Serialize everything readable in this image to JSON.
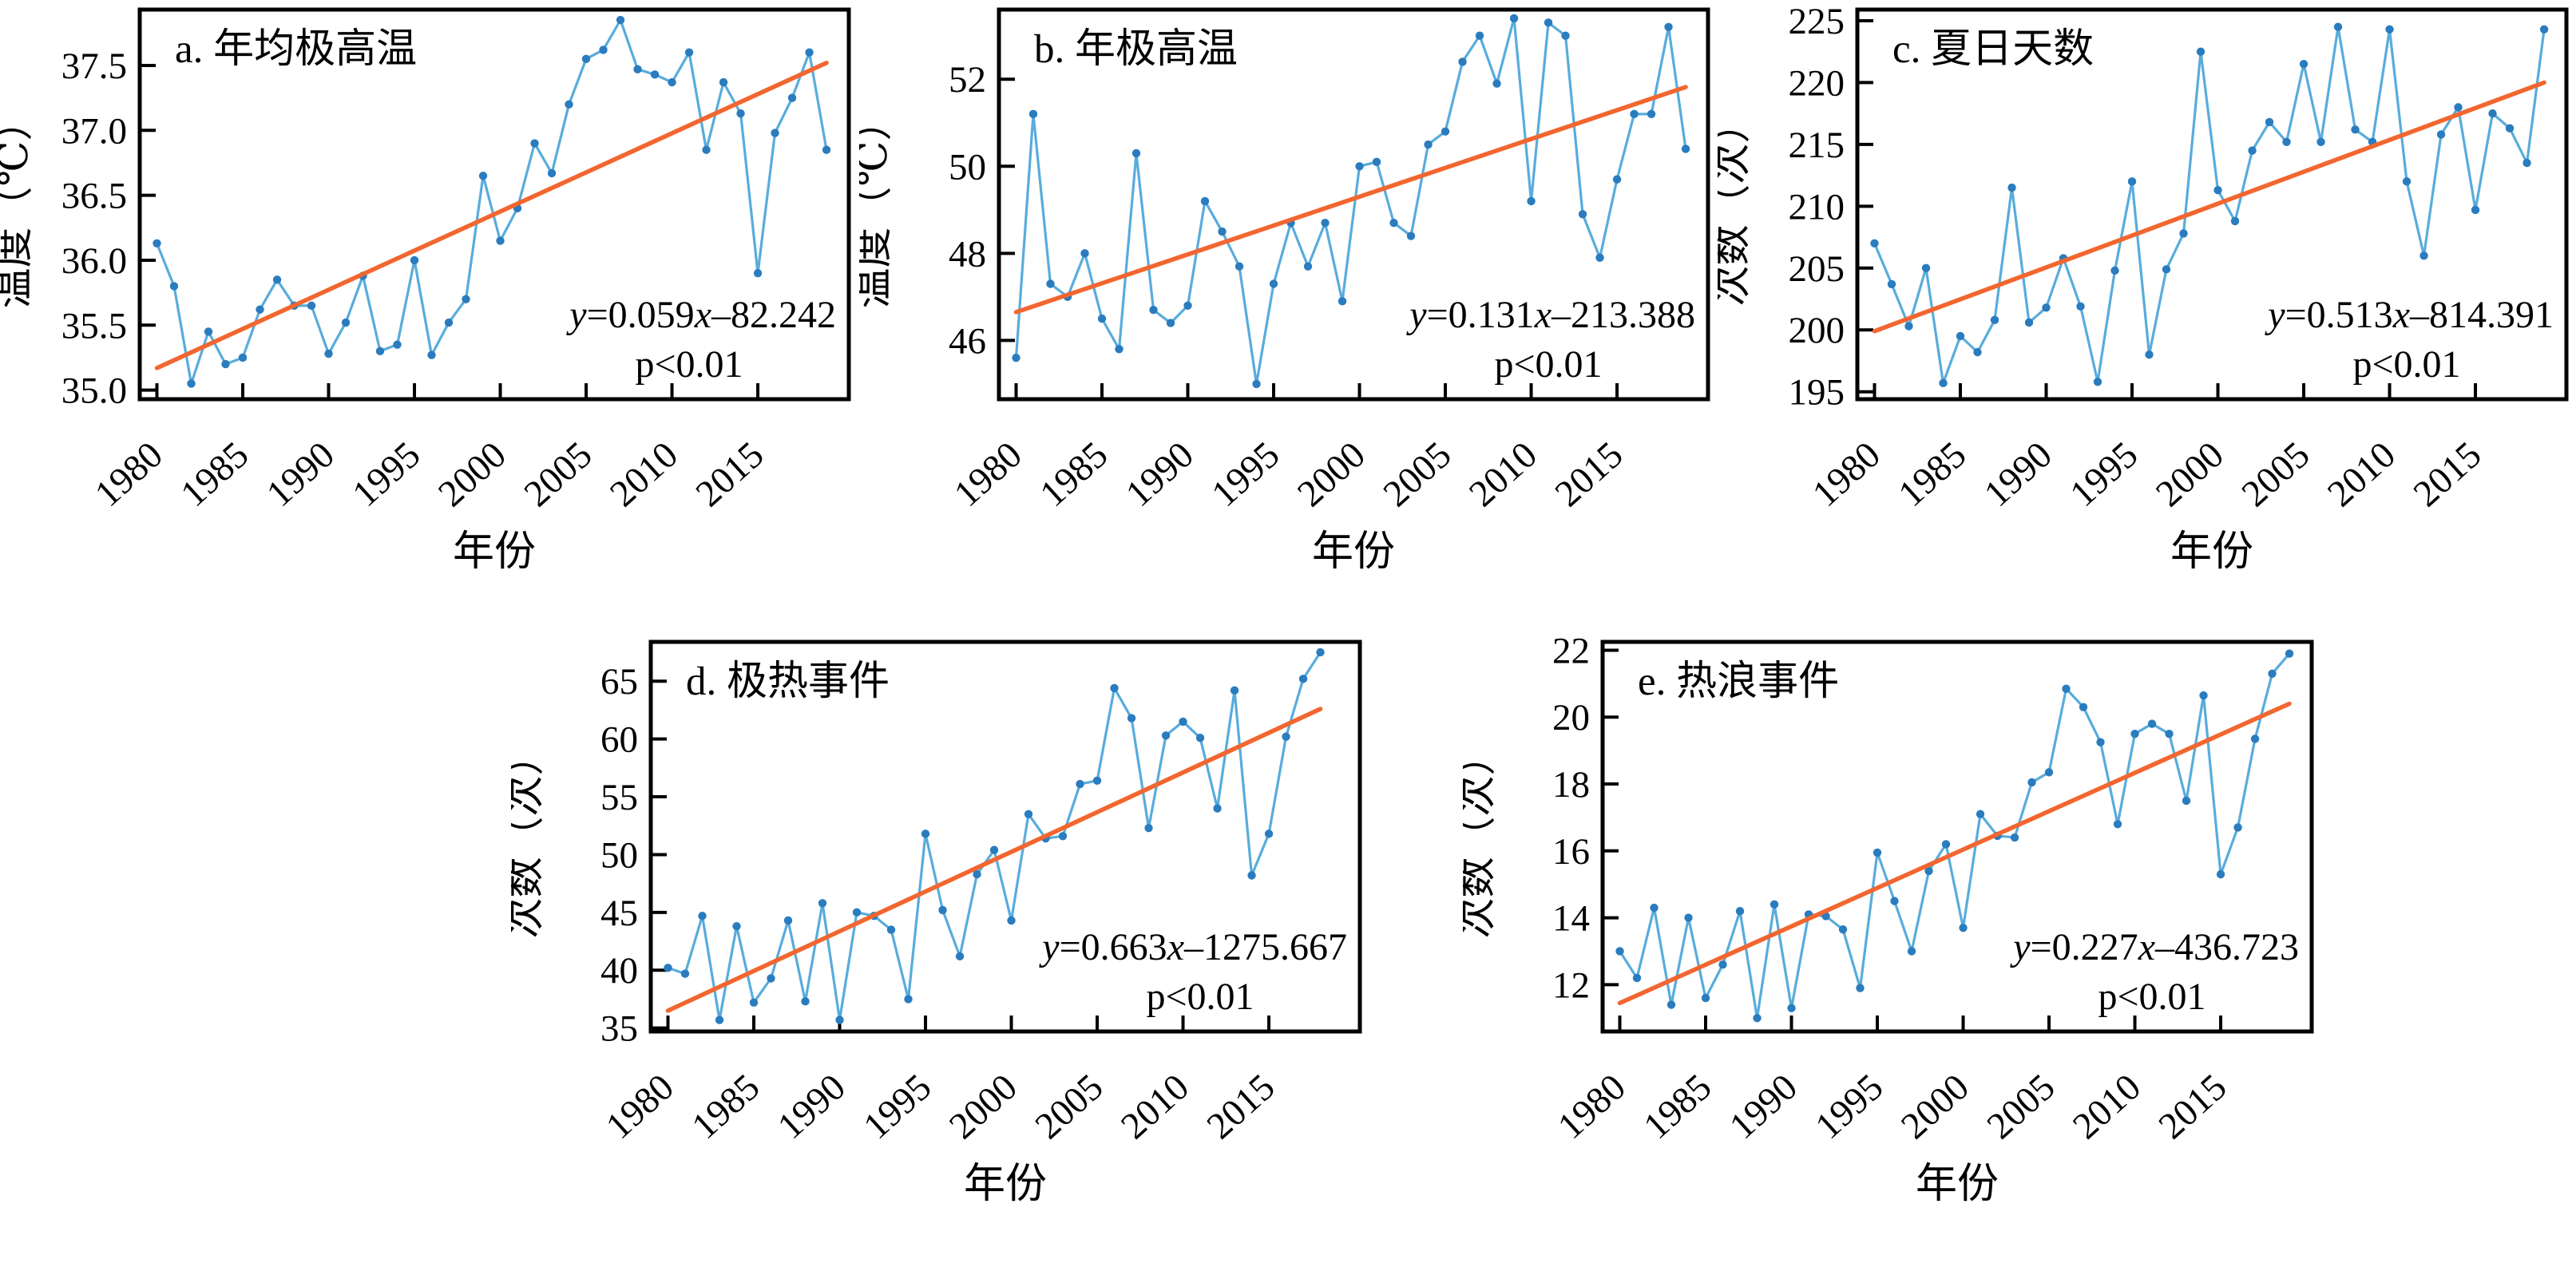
{
  "figure": {
    "type": "multi-panel line chart figure",
    "panels": 5,
    "background": "#ffffff",
    "shared_xlabel": "年份"
  },
  "style": {
    "line_color": "#58ACDC",
    "marker_color": "#2A7CBF",
    "trend_color": "#F2662F",
    "axis_color": "#000000",
    "text_color": "#000000"
  },
  "chart_data": [
    {
      "id": "a",
      "type": "line",
      "title": "a. 年均极高温",
      "ylabel": "温度（℃）",
      "xlabel": "年份",
      "equation": {
        "text": "y=0.059x–82.242",
        "lhs": "y",
        "mid": "=0.059",
        "xvar": "x",
        "tail": "–82.242",
        "pvalue": "p<0.01"
      },
      "x_start": 1980,
      "x_step": 1,
      "x_range": [
        1979,
        2020.3
      ],
      "x_ticks": [
        1980,
        1985,
        1990,
        1995,
        2000,
        2005,
        2010,
        2015
      ],
      "x_tick_labels": [
        "1980",
        "1985",
        "1990",
        "1995",
        "2000",
        "2005",
        "2010",
        "2015"
      ],
      "y_range": [
        34.93,
        37.93
      ],
      "y_ticks": [
        35.0,
        35.5,
        36.0,
        36.5,
        37.0,
        37.5
      ],
      "y_tick_labels": [
        "35.0",
        "35.5",
        "36.0",
        "36.5",
        "37.0",
        "37.5"
      ],
      "values": [
        36.13,
        35.8,
        35.05,
        35.45,
        35.2,
        35.25,
        35.62,
        35.85,
        35.65,
        35.65,
        35.28,
        35.52,
        35.88,
        35.3,
        35.35,
        36.0,
        35.27,
        35.52,
        35.7,
        36.65,
        36.15,
        36.4,
        36.9,
        36.67,
        37.2,
        37.55,
        37.62,
        37.85,
        37.47,
        37.43,
        37.37,
        37.6,
        36.85,
        37.37,
        37.13,
        35.9,
        36.98,
        37.25,
        37.6,
        36.85
      ],
      "trend": {
        "x": [
          1980,
          2019
        ],
        "y": [
          35.17,
          37.52
        ]
      }
    },
    {
      "id": "b",
      "type": "line",
      "title": "b. 年极高温",
      "ylabel": "温度（℃）",
      "xlabel": "年份",
      "equation": {
        "text": "y=0.131x–213.388",
        "lhs": "y",
        "mid": "=0.131",
        "xvar": "x",
        "tail": "–213.388",
        "pvalue": "p<0.01"
      },
      "x_start": 1980,
      "x_step": 1,
      "x_range": [
        1979,
        2020.3
      ],
      "x_ticks": [
        1980,
        1985,
        1990,
        1995,
        2000,
        2005,
        2010,
        2015
      ],
      "x_tick_labels": [
        "1980",
        "1985",
        "1990",
        "1995",
        "2000",
        "2005",
        "2010",
        "2015"
      ],
      "y_range": [
        44.65,
        53.6
      ],
      "y_ticks": [
        46,
        48,
        50,
        52
      ],
      "y_tick_labels": [
        "46",
        "48",
        "50",
        "52"
      ],
      "values": [
        45.6,
        51.2,
        47.3,
        47.0,
        48.0,
        46.5,
        45.8,
        50.3,
        46.7,
        46.4,
        46.8,
        49.2,
        48.5,
        47.7,
        45.0,
        47.3,
        48.7,
        47.7,
        48.7,
        46.9,
        50.0,
        50.1,
        48.7,
        48.4,
        50.5,
        50.8,
        52.4,
        53.0,
        51.9,
        53.4,
        49.2,
        53.3,
        53.0,
        48.9,
        47.9,
        49.7,
        51.2,
        51.2,
        53.2,
        50.4
      ],
      "trend": {
        "x": [
          1980,
          2019
        ],
        "y": [
          46.65,
          51.82
        ]
      }
    },
    {
      "id": "c",
      "type": "line",
      "title": "c. 夏日天数",
      "ylabel": "次数（次）",
      "xlabel": "年份",
      "equation": {
        "text": "y=0.513x–814.391",
        "lhs": "y",
        "mid": "=0.513",
        "xvar": "x",
        "tail": "–814.391",
        "pvalue": "p<0.01"
      },
      "x_start": 1980,
      "x_step": 1,
      "x_range": [
        1979,
        2020.3
      ],
      "x_ticks": [
        1980,
        1985,
        1990,
        1995,
        2000,
        2005,
        2010,
        2015
      ],
      "x_tick_labels": [
        "1980",
        "1985",
        "1990",
        "1995",
        "2000",
        "2005",
        "2010",
        "2015"
      ],
      "y_range": [
        194.4,
        225.9
      ],
      "y_ticks": [
        195,
        200,
        205,
        210,
        215,
        220,
        225
      ],
      "y_tick_labels": [
        "195",
        "200",
        "205",
        "210",
        "215",
        "220",
        "225"
      ],
      "values": [
        207,
        203.7,
        200.3,
        205,
        195.7,
        199.5,
        198.2,
        200.8,
        211.5,
        200.6,
        201.8,
        205.8,
        201.9,
        195.8,
        204.8,
        212,
        198,
        204.9,
        207.8,
        222.5,
        211.3,
        208.8,
        214.5,
        216.8,
        215.2,
        221.5,
        215.2,
        224.5,
        216.2,
        215.2,
        224.3,
        212,
        206,
        215.8,
        218,
        209.7,
        217.5,
        216.3,
        213.5,
        224.3
      ],
      "trend": {
        "x": [
          1980,
          2019
        ],
        "y": [
          199.9,
          220.0
        ]
      }
    },
    {
      "id": "d",
      "type": "line",
      "title": "d. 极热事件",
      "ylabel": "次数（次）",
      "xlabel": "年份",
      "equation": {
        "text": "y=0.663x–1275.667",
        "lhs": "y",
        "mid": "=0.663",
        "xvar": "x",
        "tail": "–1275.667",
        "pvalue": "p<0.01"
      },
      "x_start": 1980,
      "x_step": 1,
      "x_range": [
        1979,
        2020.3
      ],
      "x_ticks": [
        1980,
        1985,
        1990,
        1995,
        2000,
        2005,
        2010,
        2015
      ],
      "x_tick_labels": [
        "1980",
        "1985",
        "1990",
        "1995",
        "2000",
        "2005",
        "2010",
        "2015"
      ],
      "y_range": [
        34.7,
        68.4
      ],
      "y_ticks": [
        35,
        40,
        45,
        50,
        55,
        60,
        65
      ],
      "y_tick_labels": [
        "35",
        "40",
        "45",
        "50",
        "55",
        "60",
        "65"
      ],
      "values": [
        40.2,
        39.7,
        44.7,
        35.7,
        43.8,
        37.2,
        39.3,
        44.3,
        37.3,
        45.8,
        35.7,
        45.0,
        44.7,
        43.5,
        37.5,
        51.8,
        45.2,
        41.2,
        48.3,
        50.4,
        44.3,
        53.5,
        51.4,
        51.6,
        56.1,
        56.4,
        64.4,
        61.8,
        52.3,
        60.3,
        61.5,
        60.1,
        54.0,
        64.2,
        48.2,
        51.8,
        60.2,
        65.2,
        67.5
      ],
      "trend": {
        "x": [
          1980,
          2018
        ],
        "y": [
          36.5,
          62.6
        ]
      }
    },
    {
      "id": "e",
      "type": "line",
      "title": "e. 热浪事件",
      "ylabel": "次数（次）",
      "xlabel": "年份",
      "equation": {
        "text": "y=0.227x–436.723",
        "lhs": "y",
        "mid": "=0.227",
        "xvar": "x",
        "tail": "–436.723",
        "pvalue": "p<0.01"
      },
      "x_start": 1980,
      "x_step": 1,
      "x_range": [
        1979,
        2020.3
      ],
      "x_ticks": [
        1980,
        1985,
        1990,
        1995,
        2000,
        2005,
        2010,
        2015
      ],
      "x_tick_labels": [
        "1980",
        "1985",
        "1990",
        "1995",
        "2000",
        "2005",
        "2010",
        "2015"
      ],
      "y_range": [
        10.6,
        22.25
      ],
      "y_ticks": [
        12,
        14,
        16,
        18,
        20,
        22
      ],
      "y_tick_labels": [
        "12",
        "14",
        "16",
        "18",
        "20",
        "22"
      ],
      "values": [
        13.0,
        12.2,
        14.3,
        11.4,
        14.0,
        11.6,
        12.6,
        14.2,
        11.0,
        14.4,
        11.3,
        14.1,
        14.05,
        13.65,
        11.9,
        15.95,
        14.5,
        13.0,
        15.4,
        16.2,
        13.7,
        17.1,
        16.45,
        16.4,
        18.05,
        18.35,
        20.85,
        20.3,
        19.25,
        16.8,
        19.5,
        19.8,
        19.5,
        17.5,
        20.65,
        15.3,
        16.7,
        19.35,
        21.3,
        21.9
      ],
      "trend": {
        "x": [
          1980,
          2019
        ],
        "y": [
          11.45,
          20.4
        ]
      }
    }
  ]
}
